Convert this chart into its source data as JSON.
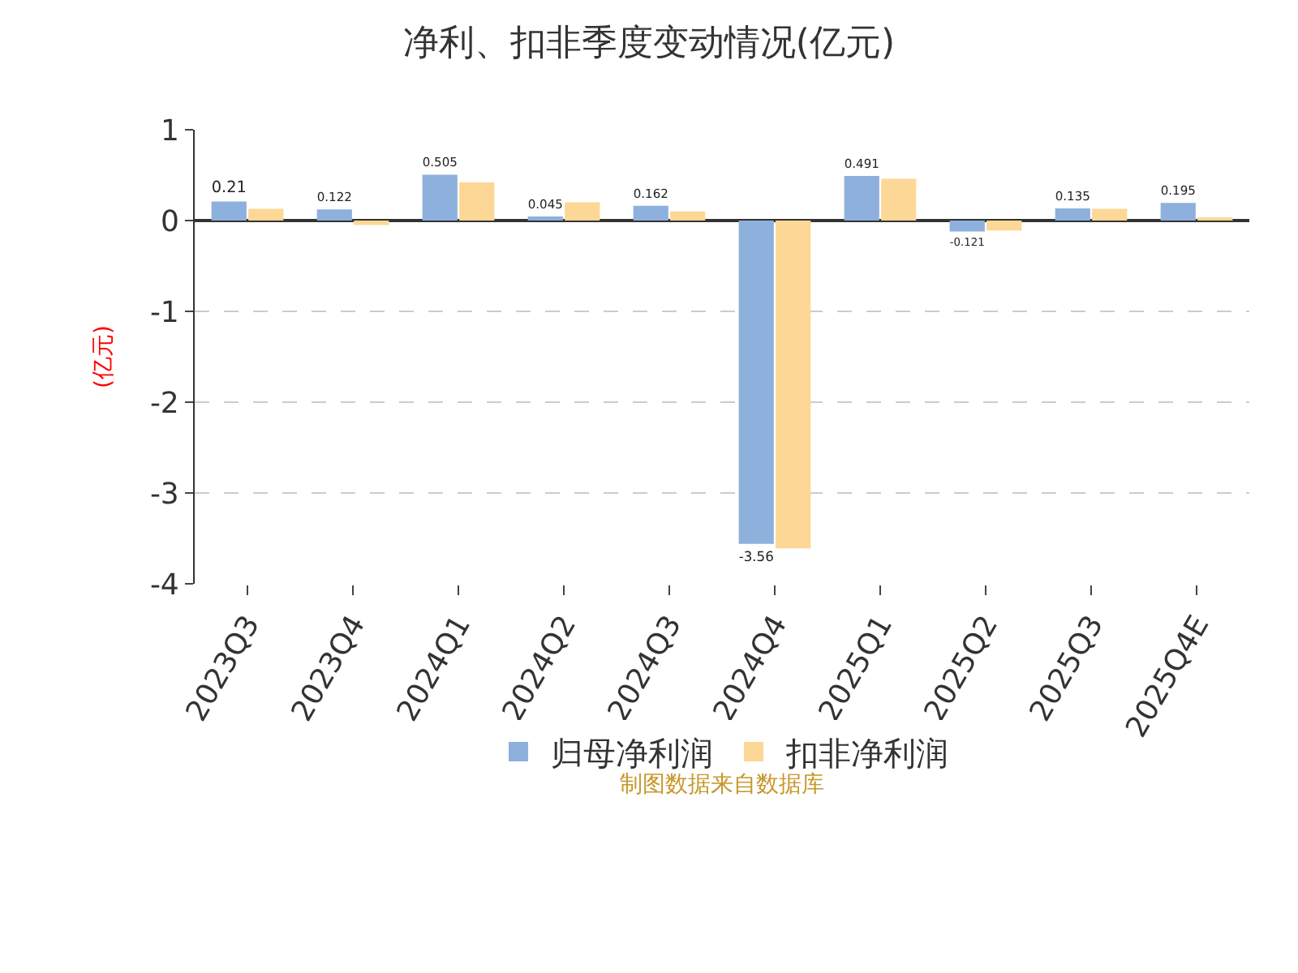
{
  "chart_data": {
    "type": "bar",
    "title": "净利、扣非季度变动情况(亿元)",
    "ylabel": "(亿元)",
    "categories": [
      "2023Q3",
      "2023Q4",
      "2024Q1",
      "2024Q2",
      "2024Q3",
      "2024Q4",
      "2025Q1",
      "2025Q2",
      "2025Q3",
      "2025Q4E"
    ],
    "series": [
      {
        "name": "归母净利润",
        "color": "#8eb0dc",
        "values": [
          0.21,
          0.122,
          0.505,
          0.045,
          0.162,
          -3.56,
          0.491,
          -0.121,
          0.135,
          0.195
        ],
        "value_labels": [
          "0.21",
          "0.122",
          "0.505",
          "0.045",
          "0.162",
          "-3.56",
          "0.491",
          "-0.121",
          "0.135",
          "0.195"
        ]
      },
      {
        "name": "扣非净利润",
        "color": "#fdd796",
        "values": [
          0.13,
          -0.05,
          0.42,
          0.2,
          0.1,
          -3.61,
          0.46,
          -0.11,
          0.13,
          0.02
        ]
      }
    ],
    "ylim": [
      -4,
      1
    ],
    "yticks": [
      -4,
      -3,
      -2,
      -1,
      0,
      1
    ],
    "grid": "y",
    "legend": "bottom",
    "annotations": [
      "制图数据来自数据库"
    ]
  }
}
